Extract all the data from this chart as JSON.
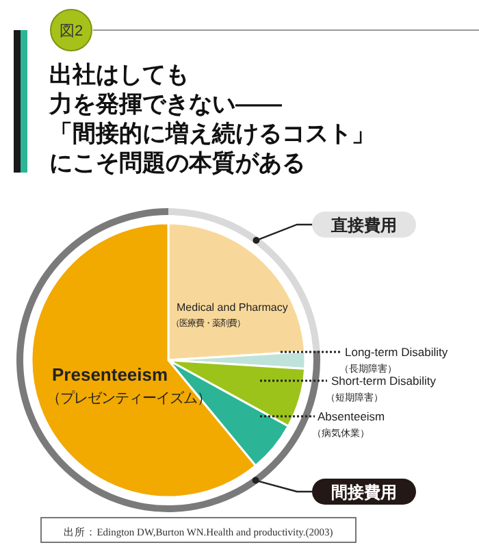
{
  "chart_data": [
    {
      "type": "pie",
      "title": "出社はしても力を発揮できない――「間接的に増え続けるコスト」にこそ問題の本質がある",
      "categories": [
        "Medical and Pharmacy\n（医療費・薬剤費）",
        "Long-term Disability\n（長期障害）",
        "Short-term Disability\n（短期障害）",
        "Absenteeism\n（病気休業）",
        "Presenteeism\n（プレゼンティーイズム）"
      ],
      "values": [
        24,
        2,
        7,
        6,
        61
      ],
      "colors": [
        "#f8d89a",
        "#bfe3da",
        "#9cc31a",
        "#2bb596",
        "#f2a900"
      ],
      "annotations": [
        "図2",
        "出所：Edington DW,Burton WN.Health and productivity.(2003)"
      ]
    },
    {
      "type": "donut",
      "categories": [
        "直接費用",
        "間接費用"
      ],
      "values": [
        24,
        76
      ],
      "colors": [
        "#d9d9d9",
        "#7a7a7a"
      ]
    }
  ]
}
